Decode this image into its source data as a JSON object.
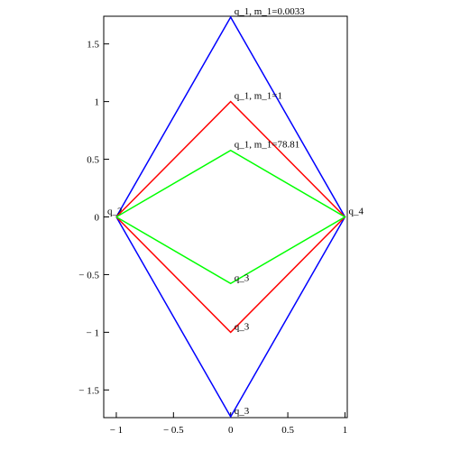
{
  "chart_data": {
    "type": "line",
    "xlim": [
      -1.11,
      1.02
    ],
    "ylim": [
      -1.74,
      1.74
    ],
    "xticks": [
      {
        "value": -1,
        "label": "− 1"
      },
      {
        "value": -0.5,
        "label": "− 0.5"
      },
      0,
      0.5,
      1
    ],
    "yticks": [
      {
        "value": -1.5,
        "label": "− 1.5"
      },
      {
        "value": -1,
        "label": "− 1"
      },
      {
        "value": -0.5,
        "label": "− 0.5"
      },
      0,
      0.5,
      1,
      1.5
    ],
    "series": [
      {
        "color": "#0000ff",
        "x": [
          -1,
          0,
          1,
          0,
          -1
        ],
        "values": [
          0,
          1.732,
          0,
          -1.732,
          0
        ],
        "point_labels": [
          "q_2",
          "q_1, m_1=0.0033",
          "q_4",
          "q_3",
          null
        ]
      },
      {
        "color": "#ff0000",
        "x": [
          -1,
          0,
          1,
          0,
          -1
        ],
        "values": [
          0,
          1,
          0,
          -1,
          0
        ],
        "point_labels": [
          null,
          "q_1, m_1=1",
          null,
          "q_3",
          null
        ]
      },
      {
        "color": "#00ff00",
        "x": [
          -1,
          0,
          1,
          0,
          -1
        ],
        "values": [
          0,
          0.577,
          0,
          -0.577,
          0
        ],
        "point_labels": [
          null,
          "q_1, m_1=78.81",
          null,
          "q_3",
          null
        ]
      }
    ]
  }
}
